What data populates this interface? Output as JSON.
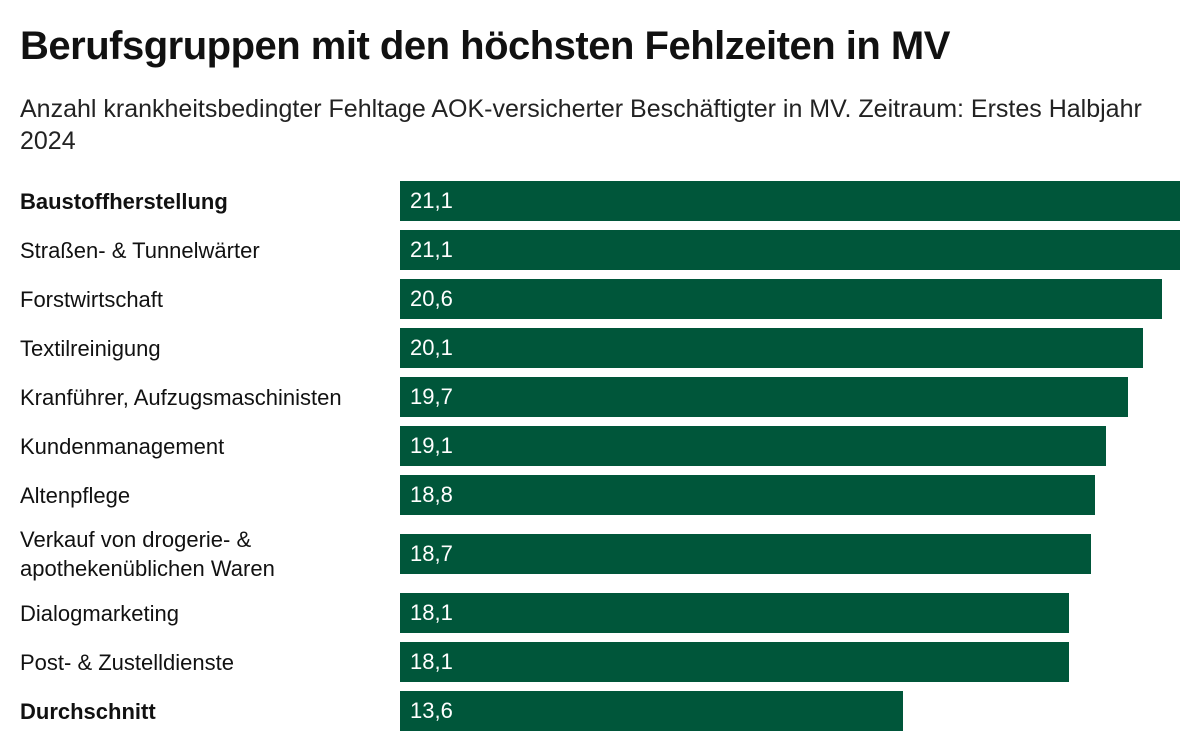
{
  "chart_data": {
    "type": "bar",
    "orientation": "horizontal",
    "title": "Berufsgruppen mit den höchsten Fehlzeiten in MV",
    "subtitle": "Anzahl krankheitsbedingter Fehltage AOK-versicherter Beschäftigter in MV. Zeitraum: Erstes Halbjahr 2024",
    "categories": [
      "Baustoffherstellung",
      "Straßen- & Tunnelwärter",
      "Forstwirtschaft",
      "Textilreinigung",
      "Kranführer, Aufzugsmaschinisten",
      "Kundenmanagement",
      "Altenpflege",
      "Verkauf von drogerie- & apothekenüblichen Waren",
      "Dialogmarketing",
      "Post- & Zustelldienste",
      "Durchschnitt"
    ],
    "values": [
      21.1,
      21.1,
      20.6,
      20.1,
      19.7,
      19.1,
      18.8,
      18.7,
      18.1,
      18.1,
      13.6
    ],
    "value_labels": [
      "21,1",
      "21,1",
      "20,6",
      "20,1",
      "19,7",
      "19,1",
      "18,8",
      "18,7",
      "18,1",
      "18,1",
      "13,6"
    ],
    "highlighted": [
      "Baustoffherstellung",
      "Durchschnitt"
    ],
    "bar_color": "#00563a",
    "xlim": [
      0,
      21.1
    ],
    "grid": false
  }
}
